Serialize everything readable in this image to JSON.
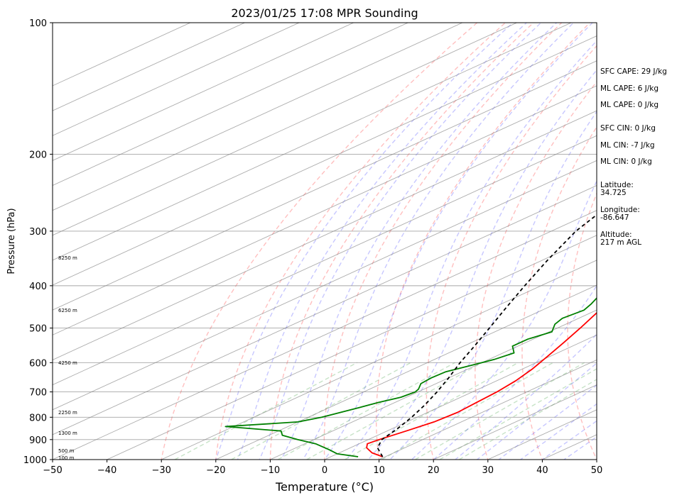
{
  "chart_data": {
    "type": "skew-t",
    "title": "2023/01/25 17:08 MPR Sounding",
    "xlabel": "Temperature (°C)",
    "ylabel": "Pressure (hPa)",
    "xlim": [
      -50,
      50
    ],
    "ylim": [
      1000,
      100
    ],
    "y_scale": "log",
    "x_ticks": [
      "−50",
      "−40",
      "−30",
      "−20",
      "−10",
      "0",
      "10",
      "20",
      "30",
      "40",
      "50"
    ],
    "y_ticks": [
      "100",
      "200",
      "300",
      "400",
      "500",
      "600",
      "700",
      "800",
      "900",
      "1000"
    ],
    "grid": true,
    "height_labels": [
      {
        "p": 990,
        "text": "100 m"
      },
      {
        "p": 955,
        "text": "500 m"
      },
      {
        "p": 870,
        "text": "1300 m"
      },
      {
        "p": 780,
        "text": "2250 m"
      },
      {
        "p": 600,
        "text": "4250 m"
      },
      {
        "p": 455,
        "text": "6250 m"
      },
      {
        "p": 345,
        "text": "8250 m"
      }
    ],
    "series": [
      {
        "color": "#ff0000",
        "points": [
          [
            985,
            9.5
          ],
          [
            965,
            6
          ],
          [
            940,
            3
          ],
          [
            920,
            1.5
          ],
          [
            900,
            2
          ],
          [
            860,
            3.5
          ],
          [
            820,
            5
          ],
          [
            780,
            5.5
          ],
          [
            740,
            5
          ],
          [
            700,
            4.5
          ],
          [
            660,
            3.5
          ],
          [
            620,
            1.8
          ],
          [
            580,
            -0.5
          ],
          [
            540,
            -3
          ],
          [
            500,
            -5.8
          ],
          [
            460,
            -9
          ],
          [
            420,
            -12.3
          ],
          [
            390,
            -14.8
          ],
          [
            350,
            -18.3
          ],
          [
            320,
            -21.1
          ],
          [
            300,
            -22.9
          ],
          [
            280,
            -24.5
          ],
          [
            260,
            -25.9
          ]
        ]
      },
      {
        "color": "#008000",
        "points": [
          [
            985,
            5
          ],
          [
            970,
            0
          ],
          [
            950,
            -3
          ],
          [
            920,
            -8
          ],
          [
            900,
            -13
          ],
          [
            880,
            -17.5
          ],
          [
            860,
            -19.5
          ],
          [
            840,
            -31.5
          ],
          [
            820,
            -20
          ],
          [
            800,
            -17.5
          ],
          [
            780,
            -16
          ],
          [
            760,
            -14.5
          ],
          [
            740,
            -13
          ],
          [
            720,
            -11
          ],
          [
            700,
            -10.5
          ],
          [
            690,
            -11
          ],
          [
            670,
            -12.8
          ],
          [
            650,
            -13.2
          ],
          [
            630,
            -13
          ],
          [
            610,
            -11
          ],
          [
            590,
            -9
          ],
          [
            570,
            -8
          ],
          [
            550,
            -11
          ],
          [
            530,
            -11
          ],
          [
            510,
            -9.5
          ],
          [
            490,
            -12
          ],
          [
            475,
            -13
          ],
          [
            455,
            -12.3
          ],
          [
            440,
            -13.5
          ],
          [
            420,
            -15.5
          ],
          [
            400,
            -17.2
          ],
          [
            380,
            -18.8
          ],
          [
            360,
            -20.7
          ],
          [
            340,
            -22.4
          ],
          [
            320,
            -25.3
          ],
          [
            310,
            -27
          ],
          [
            300,
            -27.7
          ],
          [
            290,
            -29.7
          ],
          [
            280,
            -31.2
          ],
          [
            270,
            -33.5
          ],
          [
            260,
            -34.5
          ],
          [
            250,
            -34
          ],
          [
            240,
            -31.5
          ]
        ]
      },
      {
        "color": "#000000",
        "style": "dashed",
        "points": [
          [
            985,
            9.5
          ],
          [
            940,
            5
          ],
          [
            900,
            2.5
          ],
          [
            850,
            1
          ],
          [
            800,
            -1
          ],
          [
            750,
            -3.5
          ],
          [
            700,
            -6.5
          ],
          [
            650,
            -10
          ],
          [
            600,
            -14
          ],
          [
            550,
            -18
          ],
          [
            500,
            -22.5
          ],
          [
            450,
            -27.5
          ],
          [
            400,
            -33
          ],
          [
            350,
            -39
          ],
          [
            300,
            -45.5
          ],
          [
            260,
            -50
          ]
        ]
      }
    ],
    "stats_cape": [
      "SFC CAPE: 29 J/kg",
      "ML CAPE: 6 J/kg",
      "ML CAPE: 0 J/kg"
    ],
    "stats_cin": [
      "SFC CIN: 0 J/kg",
      "ML CIN: -7 J/kg",
      "ML CIN: 0 J/kg"
    ],
    "location": [
      "Latitude:",
      "34.725",
      "Longitude:",
      "-86.647",
      "Altitude:",
      "217 m AGL"
    ]
  }
}
